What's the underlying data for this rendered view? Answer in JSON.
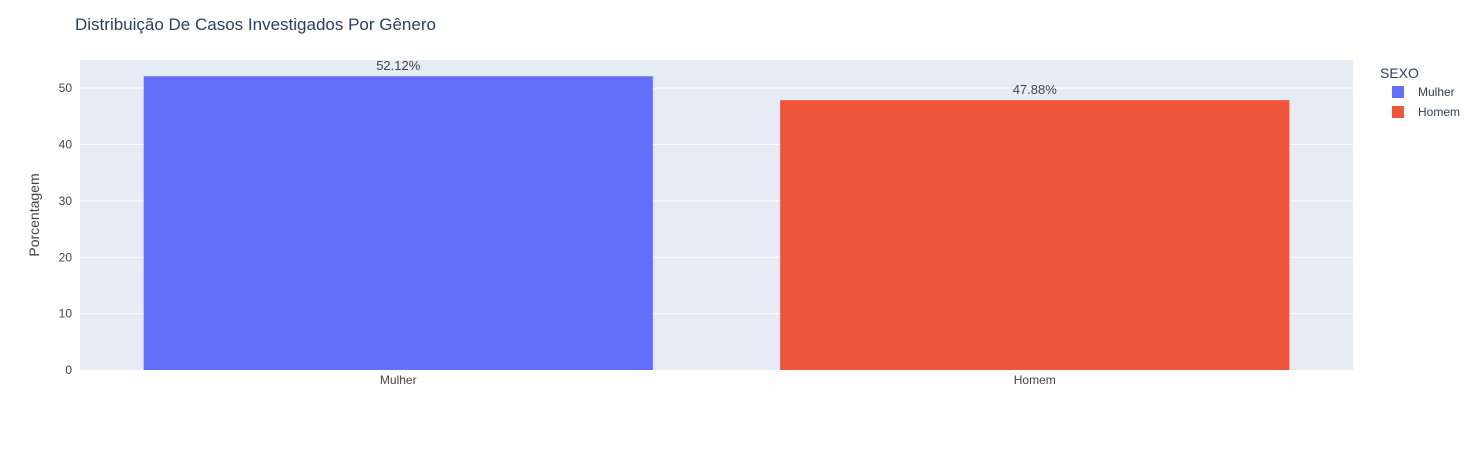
{
  "chart_data": {
    "type": "bar",
    "title": "Distribuição De Casos Investigados Por Gênero",
    "xlabel": "",
    "ylabel": "Porcentagem",
    "categories": [
      "Mulher",
      "Homem"
    ],
    "values": [
      52.12,
      47.88
    ],
    "data_labels": [
      "52.12%",
      "47.88%"
    ],
    "colors": [
      "#636efa",
      "#ef553b"
    ],
    "ylim": [
      0,
      55
    ],
    "yticks": [
      0,
      10,
      20,
      30,
      40,
      50
    ],
    "ytick_labels": [
      "0",
      "10",
      "20",
      "30",
      "40",
      "50"
    ],
    "grid": true,
    "plot_background": "#e5ecf6",
    "legend": {
      "title": "SEXO",
      "position": "top-right",
      "items": [
        "Mulher",
        "Homem"
      ]
    }
  }
}
